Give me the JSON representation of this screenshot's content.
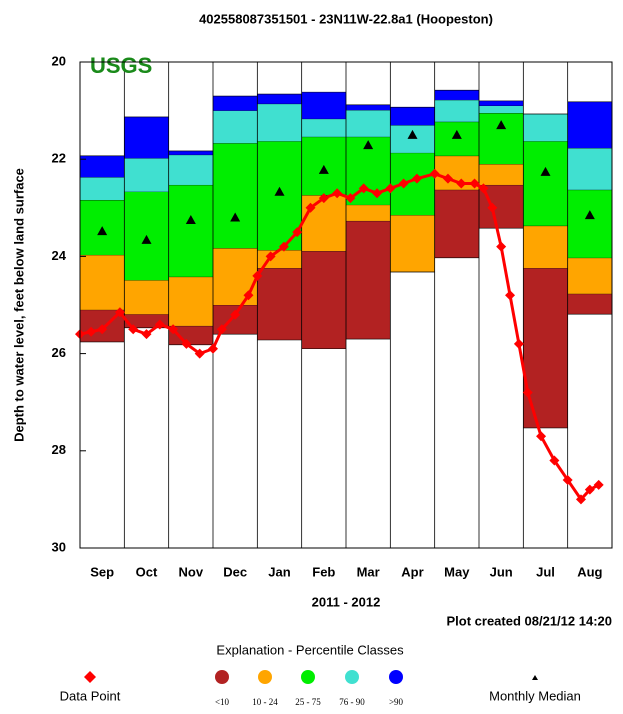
{
  "chart_data": {
    "type": "percentile",
    "title": "402558087351501 - 23N11W-22.8a1 (Hoopeston)",
    "watermark": "USGS",
    "ylabel": "Depth to water level, feet below land surface",
    "xlabel": "2011 - 2012",
    "note": "Plot created 08/21/12 14:20",
    "legend_title": "Explanation - Percentile Classes",
    "categories": [
      "Sep",
      "Oct",
      "Nov",
      "Dec",
      "Jan",
      "Feb",
      "Mar",
      "Apr",
      "May",
      "Jun",
      "Jul",
      "Aug"
    ],
    "ylim": [
      20,
      30
    ],
    "inverted": true,
    "yticks": [
      20,
      22,
      24,
      26,
      28,
      30
    ],
    "classes": [
      {
        "name": "<10",
        "color": "#b22222"
      },
      {
        "name": "10 - 24",
        "color": "#ffa500"
      },
      {
        "name": "25 - 75",
        "color": "#00ee00"
      },
      {
        "name": "76 - 90",
        "color": "#40e0d0"
      },
      {
        "name": ">90",
        "color": "#0000ff"
      }
    ],
    "boundaries": [
      [
        21.93,
        22.37,
        22.84,
        23.97,
        25.1,
        25.76
      ],
      [
        21.13,
        21.98,
        22.67,
        24.49,
        25.19,
        25.47
      ],
      [
        21.83,
        21.91,
        22.53,
        24.42,
        25.43,
        25.82
      ],
      [
        20.7,
        21.0,
        21.67,
        23.83,
        25.0,
        25.6
      ],
      [
        20.66,
        20.86,
        21.63,
        23.87,
        24.24,
        25.72
      ],
      [
        20.62,
        21.17,
        21.54,
        22.74,
        23.89,
        25.9
      ],
      [
        20.88,
        20.99,
        21.54,
        22.94,
        23.27,
        25.7
      ],
      [
        20.93,
        21.3,
        21.87,
        23.15,
        24.32,
        24.32
      ],
      [
        20.58,
        20.78,
        21.23,
        21.93,
        22.63,
        24.03
      ],
      [
        20.8,
        20.9,
        21.05,
        22.1,
        22.53,
        23.42
      ],
      [
        21.07,
        21.07,
        21.63,
        23.37,
        24.24,
        27.53
      ],
      [
        20.82,
        21.77,
        22.63,
        24.03,
        24.77,
        25.19
      ]
    ],
    "median": {
      "name": "Monthly Median",
      "values": [
        23.48,
        23.66,
        23.25,
        23.2,
        22.67,
        22.22,
        21.71,
        21.5,
        21.5,
        21.3,
        22.26,
        23.15
      ]
    },
    "data_points": {
      "name": "Data Point",
      "color": "#ff0000",
      "x": [
        0,
        0.25,
        0.5,
        0.9,
        1.2,
        1.5,
        1.8,
        2.1,
        2.4,
        2.7,
        3.0,
        3.2,
        3.5,
        3.8,
        4.0,
        4.3,
        4.6,
        4.9,
        5.2,
        5.5,
        5.8,
        6.1,
        6.4,
        6.7,
        7.0,
        7.3,
        7.6,
        8.0,
        8.3,
        8.6,
        8.9,
        9.1,
        9.3,
        9.5,
        9.7,
        9.9,
        10.1,
        10.4,
        10.7,
        11.0,
        11.3,
        11.5,
        11.7
      ],
      "values": [
        25.6,
        25.55,
        25.5,
        25.15,
        25.5,
        25.6,
        25.4,
        25.5,
        25.8,
        26.0,
        25.9,
        25.5,
        25.2,
        24.8,
        24.4,
        24.0,
        23.8,
        23.5,
        23.0,
        22.8,
        22.7,
        22.8,
        22.6,
        22.7,
        22.6,
        22.5,
        22.4,
        22.3,
        22.4,
        22.5,
        22.5,
        22.6,
        23.0,
        23.8,
        24.8,
        25.8,
        26.8,
        27.7,
        28.2,
        28.6,
        29.0,
        28.8,
        28.7
      ]
    }
  }
}
